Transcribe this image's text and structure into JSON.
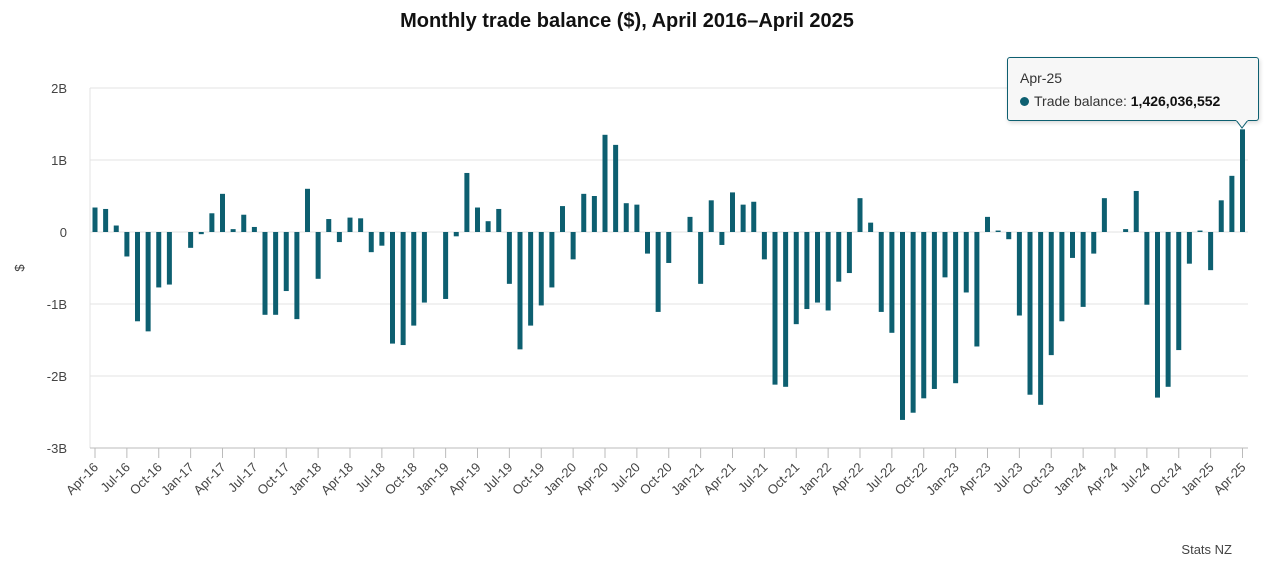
{
  "chart_data": {
    "type": "bar",
    "title": "Monthly trade balance ($), April 2016–April 2025",
    "xlabel": "",
    "ylabel": "$",
    "ylim": [
      -3000000000,
      2000000000
    ],
    "yticks": [
      {
        "value": 2000000000,
        "label": "2B"
      },
      {
        "value": 1000000000,
        "label": "1B"
      },
      {
        "value": 0,
        "label": "0"
      },
      {
        "value": -1000000000,
        "label": "-1B"
      },
      {
        "value": -2000000000,
        "label": "-2B"
      },
      {
        "value": -3000000000,
        "label": "-3B"
      }
    ],
    "tick_labels": [
      "Apr-16",
      "Jul-16",
      "Oct-16",
      "Jan-17",
      "Apr-17",
      "Jul-17",
      "Oct-17",
      "Jan-18",
      "Apr-18",
      "Jul-18",
      "Oct-18",
      "Jan-19",
      "Apr-19",
      "Jul-19",
      "Oct-19",
      "Jan-20",
      "Apr-20",
      "Jul-20",
      "Oct-20",
      "Jan-21",
      "Apr-21",
      "Jul-21",
      "Oct-21",
      "Jan-22",
      "Apr-22",
      "Jul-22",
      "Oct-22",
      "Jan-23",
      "Apr-23",
      "Jul-23",
      "Oct-23",
      "Jan-24",
      "Apr-24",
      "Jul-24",
      "Oct-24",
      "Jan-25",
      "Apr-25"
    ],
    "tick_every": 3,
    "grid": true,
    "legend": "none",
    "series": [
      {
        "name": "Trade balance",
        "color": "#0d5f70",
        "start": "Apr-16",
        "values": [
          340000000,
          320000000,
          90000000,
          -340000000,
          -1240000000,
          -1380000000,
          -770000000,
          -730000000,
          0,
          -220000000,
          -30000000,
          260000000,
          530000000,
          40000000,
          240000000,
          70000000,
          -1150000000,
          -1150000000,
          -820000000,
          -1210000000,
          600000000,
          -650000000,
          180000000,
          -140000000,
          200000000,
          190000000,
          -280000000,
          -190000000,
          -1550000000,
          -1570000000,
          -1300000000,
          -980000000,
          0,
          -930000000,
          -60000000,
          820000000,
          340000000,
          150000000,
          320000000,
          -720000000,
          -1630000000,
          -1300000000,
          -1020000000,
          -770000000,
          360000000,
          -380000000,
          530000000,
          500000000,
          1350000000,
          1210000000,
          400000000,
          380000000,
          -300000000,
          -1110000000,
          -430000000,
          0,
          210000000,
          -720000000,
          440000000,
          -180000000,
          550000000,
          380000000,
          420000000,
          -380000000,
          -2120000000,
          -2150000000,
          -1280000000,
          -1070000000,
          -980000000,
          -1090000000,
          -690000000,
          -570000000,
          470000000,
          130000000,
          -1110000000,
          -1400000000,
          -2610000000,
          -2510000000,
          -2310000000,
          -2180000000,
          -630000000,
          -2100000000,
          -840000000,
          -1590000000,
          210000000,
          20000000,
          -100000000,
          -1160000000,
          -2260000000,
          -2400000000,
          -1710000000,
          -1240000000,
          -360000000,
          -1040000000,
          -300000000,
          470000000,
          0,
          40000000,
          570000000,
          -1010000000,
          -2300000000,
          -2150000000,
          -1640000000,
          -440000000,
          20000000,
          -530000000,
          440000000,
          780000000,
          1426036552
        ]
      }
    ],
    "tooltip": {
      "category": "Apr-25",
      "series_label": "Trade balance:",
      "value_text": "1,426,036,552"
    },
    "source": "Stats NZ"
  }
}
